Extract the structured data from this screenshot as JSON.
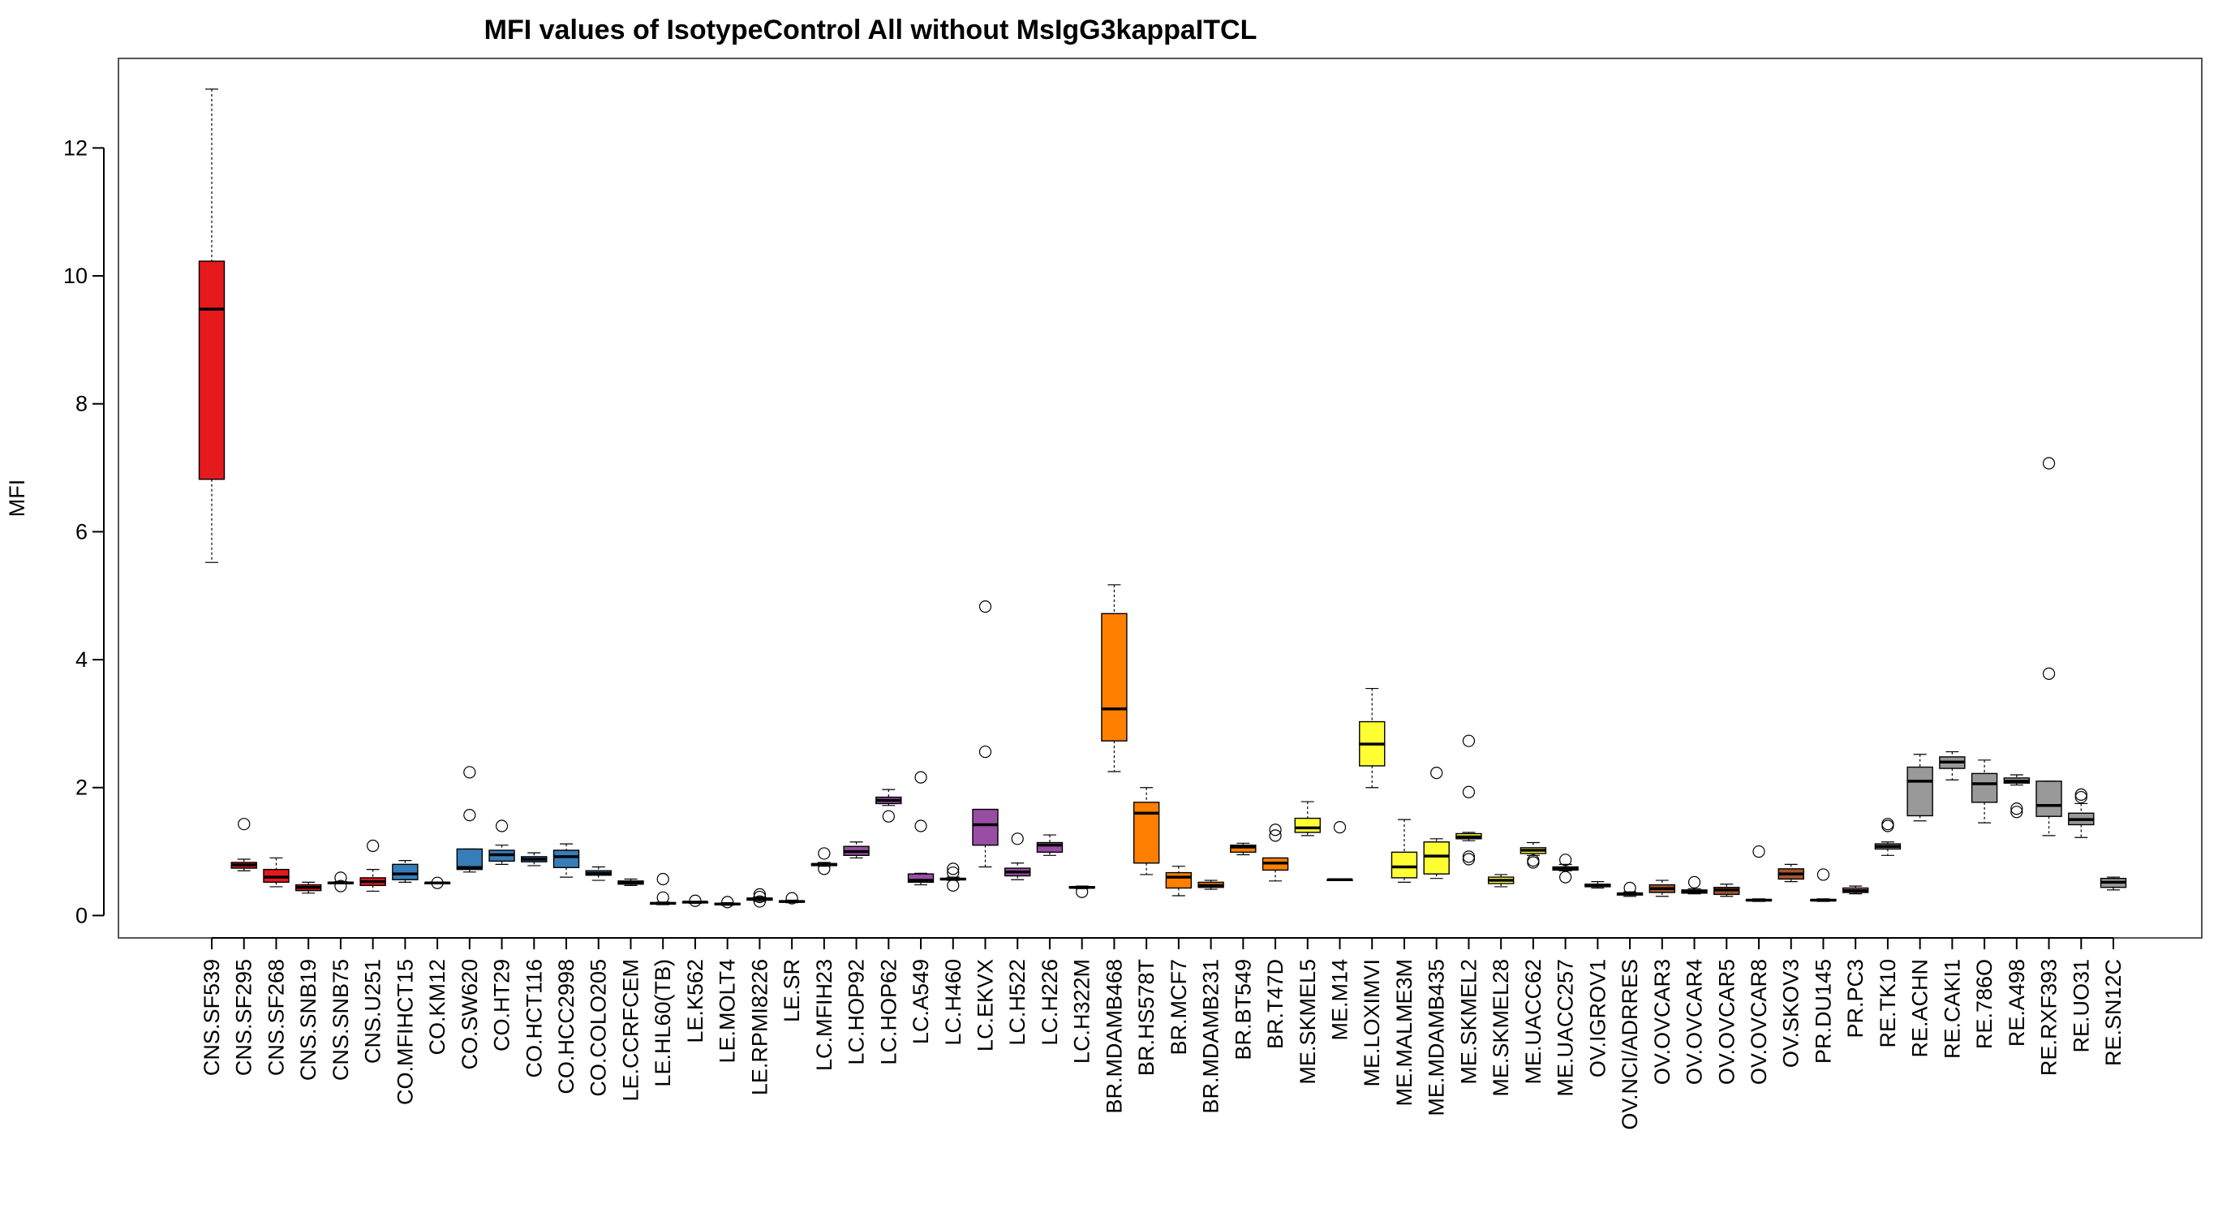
{
  "chart_data": {
    "type": "boxplot",
    "title": "MFI values of IsotypeControl All without MsIgG3kappaITCL",
    "xlabel": "",
    "ylabel": "MFI",
    "ylim": [
      -0.35,
      13.4
    ],
    "yticks": [
      0,
      2,
      4,
      6,
      8,
      10,
      12
    ],
    "grid": false,
    "legend": "none",
    "colors": {
      "CNS": "#e41a1c",
      "CO": "#377eb8",
      "LE": "#4daf4a",
      "LC": "#984ea3",
      "BR": "#ff7f00",
      "ME": "#ffff33",
      "OV": "#a65628",
      "PR": "#f781bf",
      "RE": "#999999"
    },
    "boxes": [
      {
        "label": "CNS.SF539",
        "group": "CNS",
        "wmin": 5.52,
        "q1": 6.82,
        "median": 9.48,
        "q3": 10.23,
        "wmax": 12.92,
        "outliers": []
      },
      {
        "label": "CNS.SF295",
        "group": "CNS",
        "wmin": 0.7,
        "q1": 0.74,
        "median": 0.79,
        "q3": 0.83,
        "wmax": 0.88,
        "outliers": [
          1.43
        ]
      },
      {
        "label": "CNS.SF268",
        "group": "CNS",
        "wmin": 0.45,
        "q1": 0.52,
        "median": 0.6,
        "q3": 0.72,
        "wmax": 0.9,
        "outliers": []
      },
      {
        "label": "CNS.SNB19",
        "group": "CNS",
        "wmin": 0.35,
        "q1": 0.39,
        "median": 0.44,
        "q3": 0.48,
        "wmax": 0.52,
        "outliers": []
      },
      {
        "label": "CNS.SNB75",
        "group": "CNS",
        "wmin": 0.5,
        "q1": 0.5,
        "median": 0.51,
        "q3": 0.52,
        "wmax": 0.53,
        "outliers": [
          0.59,
          0.46
        ]
      },
      {
        "label": "CNS.U251",
        "group": "CNS",
        "wmin": 0.38,
        "q1": 0.47,
        "median": 0.53,
        "q3": 0.59,
        "wmax": 0.72,
        "outliers": [
          1.09
        ]
      },
      {
        "label": "CO.MFIHCT15",
        "group": "CO",
        "wmin": 0.52,
        "q1": 0.56,
        "median": 0.65,
        "q3": 0.8,
        "wmax": 0.86,
        "outliers": []
      },
      {
        "label": "CO.KM12",
        "group": "CO",
        "wmin": 0.5,
        "q1": 0.5,
        "median": 0.51,
        "q3": 0.51,
        "wmax": 0.52,
        "outliers": [
          0.51
        ]
      },
      {
        "label": "CO.SW620",
        "group": "CO",
        "wmin": 0.68,
        "q1": 0.72,
        "median": 0.75,
        "q3": 1.04,
        "wmax": 1.04,
        "outliers": [
          2.24,
          1.57
        ]
      },
      {
        "label": "CO.HT29",
        "group": "CO",
        "wmin": 0.8,
        "q1": 0.85,
        "median": 0.95,
        "q3": 1.02,
        "wmax": 1.1,
        "outliers": [
          1.4
        ]
      },
      {
        "label": "CO.HCT116",
        "group": "CO",
        "wmin": 0.78,
        "q1": 0.84,
        "median": 0.88,
        "q3": 0.92,
        "wmax": 0.98,
        "outliers": []
      },
      {
        "label": "CO.HCC2998",
        "group": "CO",
        "wmin": 0.6,
        "q1": 0.75,
        "median": 0.92,
        "q3": 1.02,
        "wmax": 1.12,
        "outliers": []
      },
      {
        "label": "CO.COLO205",
        "group": "CO",
        "wmin": 0.55,
        "q1": 0.63,
        "median": 0.66,
        "q3": 0.7,
        "wmax": 0.76,
        "outliers": []
      },
      {
        "label": "LE.CCRFCEM",
        "group": "LE",
        "wmin": 0.47,
        "q1": 0.49,
        "median": 0.52,
        "q3": 0.54,
        "wmax": 0.57,
        "outliers": []
      },
      {
        "label": "LE.HL60(TB)",
        "group": "LE",
        "wmin": 0.17,
        "q1": 0.18,
        "median": 0.19,
        "q3": 0.2,
        "wmax": 0.21,
        "outliers": [
          0.57,
          0.28
        ]
      },
      {
        "label": "LE.K562",
        "group": "LE",
        "wmin": 0.19,
        "q1": 0.2,
        "median": 0.21,
        "q3": 0.21,
        "wmax": 0.22,
        "outliers": [
          0.23
        ]
      },
      {
        "label": "LE.MOLT4",
        "group": "LE",
        "wmin": 0.16,
        "q1": 0.17,
        "median": 0.18,
        "q3": 0.19,
        "wmax": 0.2,
        "outliers": [
          0.21
        ]
      },
      {
        "label": "LE.RPMI8226",
        "group": "LE",
        "wmin": 0.22,
        "q1": 0.24,
        "median": 0.26,
        "q3": 0.27,
        "wmax": 0.29,
        "outliers": [
          0.33,
          0.29,
          0.22
        ]
      },
      {
        "label": "LE.SR",
        "group": "LE",
        "wmin": 0.2,
        "q1": 0.21,
        "median": 0.22,
        "q3": 0.23,
        "wmax": 0.24,
        "outliers": [
          0.27
        ]
      },
      {
        "label": "LC.MFIH23",
        "group": "LC",
        "wmin": 0.77,
        "q1": 0.78,
        "median": 0.8,
        "q3": 0.81,
        "wmax": 0.83,
        "outliers": [
          0.97,
          0.73
        ]
      },
      {
        "label": "LC.HOP92",
        "group": "LC",
        "wmin": 0.9,
        "q1": 0.94,
        "median": 1.0,
        "q3": 1.08,
        "wmax": 1.15,
        "outliers": []
      },
      {
        "label": "LC.HOP62",
        "group": "LC",
        "wmin": 1.72,
        "q1": 1.75,
        "median": 1.8,
        "q3": 1.85,
        "wmax": 1.97,
        "outliers": [
          1.55
        ]
      },
      {
        "label": "LC.A549",
        "group": "LC",
        "wmin": 0.48,
        "q1": 0.52,
        "median": 0.55,
        "q3": 0.65,
        "wmax": 0.66,
        "outliers": [
          2.16,
          1.4
        ]
      },
      {
        "label": "LC.H460",
        "group": "LC",
        "wmin": 0.55,
        "q1": 0.56,
        "median": 0.57,
        "q3": 0.58,
        "wmax": 0.6,
        "outliers": [
          0.73,
          0.67,
          0.47
        ]
      },
      {
        "label": "LC.EKVX",
        "group": "LC",
        "wmin": 0.76,
        "q1": 1.1,
        "median": 1.42,
        "q3": 1.66,
        "wmax": 1.66,
        "outliers": [
          4.83,
          2.56
        ]
      },
      {
        "label": "LC.H522",
        "group": "LC",
        "wmin": 0.56,
        "q1": 0.62,
        "median": 0.68,
        "q3": 0.74,
        "wmax": 0.82,
        "outliers": [
          1.2
        ]
      },
      {
        "label": "LC.H226",
        "group": "LC",
        "wmin": 0.94,
        "q1": 0.99,
        "median": 1.1,
        "q3": 1.14,
        "wmax": 1.26,
        "outliers": []
      },
      {
        "label": "LC.H322M",
        "group": "LC",
        "wmin": 0.42,
        "q1": 0.43,
        "median": 0.44,
        "q3": 0.45,
        "wmax": 0.46,
        "outliers": [
          0.37
        ]
      },
      {
        "label": "BR.MDAMB468",
        "group": "BR",
        "wmin": 2.25,
        "q1": 2.73,
        "median": 3.23,
        "q3": 4.72,
        "wmax": 5.17,
        "outliers": []
      },
      {
        "label": "BR.HS578T",
        "group": "BR",
        "wmin": 0.64,
        "q1": 0.82,
        "median": 1.6,
        "q3": 1.77,
        "wmax": 2.0,
        "outliers": []
      },
      {
        "label": "BR.MCF7",
        "group": "BR",
        "wmin": 0.31,
        "q1": 0.43,
        "median": 0.6,
        "q3": 0.67,
        "wmax": 0.77,
        "outliers": []
      },
      {
        "label": "BR.MDAMB231",
        "group": "BR",
        "wmin": 0.41,
        "q1": 0.44,
        "median": 0.47,
        "q3": 0.52,
        "wmax": 0.55,
        "outliers": []
      },
      {
        "label": "BR.BT549",
        "group": "BR",
        "wmin": 0.95,
        "q1": 0.99,
        "median": 1.07,
        "q3": 1.1,
        "wmax": 1.13,
        "outliers": []
      },
      {
        "label": "BR.T47D",
        "group": "BR",
        "wmin": 0.54,
        "q1": 0.71,
        "median": 0.82,
        "q3": 0.9,
        "wmax": 0.9,
        "outliers": [
          1.34,
          1.25
        ]
      },
      {
        "label": "ME.SKMEL5",
        "group": "ME",
        "wmin": 1.25,
        "q1": 1.3,
        "median": 1.37,
        "q3": 1.52,
        "wmax": 1.78,
        "outliers": []
      },
      {
        "label": "ME.M14",
        "group": "ME",
        "wmin": 0.55,
        "q1": 0.55,
        "median": 0.56,
        "q3": 0.56,
        "wmax": 0.57,
        "outliers": [
          1.38
        ]
      },
      {
        "label": "ME.LOXIMVI",
        "group": "ME",
        "wmin": 2.0,
        "q1": 2.34,
        "median": 2.68,
        "q3": 3.03,
        "wmax": 3.55,
        "outliers": []
      },
      {
        "label": "ME.MALME3M",
        "group": "ME",
        "wmin": 0.52,
        "q1": 0.59,
        "median": 0.76,
        "q3": 0.99,
        "wmax": 1.5,
        "outliers": []
      },
      {
        "label": "ME.MDAMB435",
        "group": "ME",
        "wmin": 0.58,
        "q1": 0.65,
        "median": 0.93,
        "q3": 1.15,
        "wmax": 1.2,
        "outliers": [
          2.23
        ]
      },
      {
        "label": "ME.SKMEL2",
        "group": "ME",
        "wmin": 1.17,
        "q1": 1.2,
        "median": 1.23,
        "q3": 1.28,
        "wmax": 1.3,
        "outliers": [
          2.73,
          1.93,
          0.92,
          0.88
        ]
      },
      {
        "label": "ME.SKMEL28",
        "group": "ME",
        "wmin": 0.45,
        "q1": 0.5,
        "median": 0.55,
        "q3": 0.6,
        "wmax": 0.64,
        "outliers": []
      },
      {
        "label": "ME.UACC62",
        "group": "ME",
        "wmin": 0.94,
        "q1": 0.97,
        "median": 1.02,
        "q3": 1.06,
        "wmax": 1.14,
        "outliers": [
          0.86,
          0.83
        ]
      },
      {
        "label": "ME.UACC257",
        "group": "ME",
        "wmin": 0.7,
        "q1": 0.71,
        "median": 0.74,
        "q3": 0.76,
        "wmax": 0.8,
        "outliers": [
          0.87,
          0.6
        ]
      },
      {
        "label": "OV.IGROV1",
        "group": "OV",
        "wmin": 0.43,
        "q1": 0.45,
        "median": 0.47,
        "q3": 0.49,
        "wmax": 0.53,
        "outliers": []
      },
      {
        "label": "OV.NCI/ADRRES",
        "group": "OV",
        "wmin": 0.3,
        "q1": 0.32,
        "median": 0.34,
        "q3": 0.35,
        "wmax": 0.37,
        "outliers": [
          0.43
        ]
      },
      {
        "label": "OV.OVCAR3",
        "group": "OV",
        "wmin": 0.3,
        "q1": 0.36,
        "median": 0.42,
        "q3": 0.48,
        "wmax": 0.55,
        "outliers": []
      },
      {
        "label": "OV.OVCAR4",
        "group": "OV",
        "wmin": 0.34,
        "q1": 0.35,
        "median": 0.37,
        "q3": 0.4,
        "wmax": 0.42,
        "outliers": [
          0.52
        ]
      },
      {
        "label": "OV.OVCAR5",
        "group": "OV",
        "wmin": 0.3,
        "q1": 0.33,
        "median": 0.4,
        "q3": 0.44,
        "wmax": 0.49,
        "outliers": []
      },
      {
        "label": "OV.OVCAR8",
        "group": "OV",
        "wmin": 0.22,
        "q1": 0.23,
        "median": 0.24,
        "q3": 0.25,
        "wmax": 0.26,
        "outliers": [
          1.0
        ]
      },
      {
        "label": "OV.SKOV3",
        "group": "OV",
        "wmin": 0.53,
        "q1": 0.57,
        "median": 0.65,
        "q3": 0.73,
        "wmax": 0.8,
        "outliers": []
      },
      {
        "label": "PR.DU145",
        "group": "PR",
        "wmin": 0.22,
        "q1": 0.23,
        "median": 0.24,
        "q3": 0.25,
        "wmax": 0.26,
        "outliers": [
          0.64
        ]
      },
      {
        "label": "PR.PC3",
        "group": "PR",
        "wmin": 0.34,
        "q1": 0.36,
        "median": 0.39,
        "q3": 0.43,
        "wmax": 0.46,
        "outliers": []
      },
      {
        "label": "RE.TK10",
        "group": "RE",
        "wmin": 0.94,
        "q1": 1.04,
        "median": 1.08,
        "q3": 1.12,
        "wmax": 1.15,
        "outliers": [
          1.43,
          1.4
        ]
      },
      {
        "label": "RE.ACHN",
        "group": "RE",
        "wmin": 1.48,
        "q1": 1.56,
        "median": 2.1,
        "q3": 2.32,
        "wmax": 2.52,
        "outliers": []
      },
      {
        "label": "RE.CAKI1",
        "group": "RE",
        "wmin": 2.12,
        "q1": 2.3,
        "median": 2.4,
        "q3": 2.48,
        "wmax": 2.56,
        "outliers": []
      },
      {
        "label": "RE.786O",
        "group": "RE",
        "wmin": 1.45,
        "q1": 1.77,
        "median": 2.06,
        "q3": 2.22,
        "wmax": 2.43,
        "outliers": []
      },
      {
        "label": "RE.A498",
        "group": "RE",
        "wmin": 2.04,
        "q1": 2.07,
        "median": 2.1,
        "q3": 2.15,
        "wmax": 2.2,
        "outliers": [
          1.67,
          1.62
        ]
      },
      {
        "label": "RE.RXF393",
        "group": "RE",
        "wmin": 1.25,
        "q1": 1.55,
        "median": 1.72,
        "q3": 2.1,
        "wmax": 2.1,
        "outliers": [
          7.07,
          3.78
        ]
      },
      {
        "label": "RE.UO31",
        "group": "RE",
        "wmin": 1.22,
        "q1": 1.42,
        "median": 1.5,
        "q3": 1.6,
        "wmax": 1.75,
        "outliers": [
          1.89,
          1.85
        ]
      },
      {
        "label": "RE.SN12C",
        "group": "RE",
        "wmin": 0.4,
        "q1": 0.44,
        "median": 0.52,
        "q3": 0.58,
        "wmax": 0.6,
        "outliers": []
      }
    ]
  }
}
